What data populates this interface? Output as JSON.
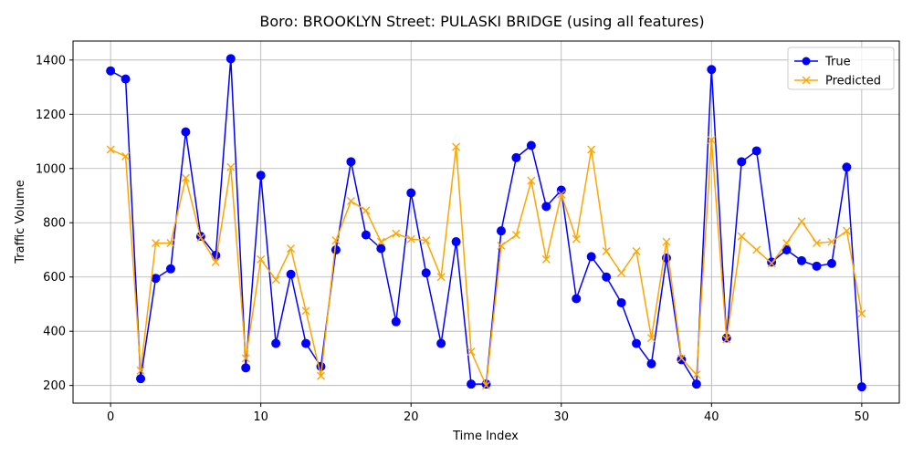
{
  "chart_data": {
    "type": "line",
    "title": "Boro: BROOKLYN Street: PULASKI BRIDGE (using all features)",
    "xlabel": "Time Index",
    "ylabel": "Traffic Volume",
    "xlim": [
      -2.5,
      52.5
    ],
    "ylim": [
      135,
      1470
    ],
    "xticks": [
      0,
      10,
      20,
      30,
      40,
      50
    ],
    "yticks": [
      200,
      400,
      600,
      800,
      1000,
      1200,
      1400
    ],
    "grid": true,
    "legend_position": "top-right",
    "x": [
      0,
      1,
      2,
      3,
      4,
      5,
      6,
      7,
      8,
      9,
      10,
      11,
      12,
      13,
      14,
      15,
      16,
      17,
      18,
      19,
      20,
      21,
      22,
      23,
      24,
      25,
      26,
      27,
      28,
      29,
      30,
      31,
      32,
      33,
      34,
      35,
      36,
      37,
      38,
      39,
      40,
      41,
      42,
      43,
      44,
      45,
      46,
      47,
      48,
      49,
      50
    ],
    "series": [
      {
        "name": "True",
        "color": "#0000ff",
        "marker": "circle",
        "values": [
          1360,
          1330,
          225,
          595,
          630,
          1135,
          750,
          680,
          1405,
          265,
          975,
          355,
          610,
          355,
          270,
          700,
          1025,
          755,
          705,
          435,
          910,
          615,
          355,
          730,
          205,
          205,
          770,
          1040,
          1085,
          860,
          920,
          520,
          675,
          600,
          505,
          355,
          280,
          670,
          295,
          205,
          1365,
          375,
          1025,
          1065,
          655,
          700,
          660,
          640,
          650,
          1005,
          195
        ]
      },
      {
        "name": "Predicted",
        "color": "#ffa500",
        "marker": "x",
        "values": [
          1070,
          1045,
          255,
          725,
          725,
          965,
          745,
          655,
          1005,
          300,
          665,
          590,
          705,
          475,
          235,
          735,
          880,
          845,
          730,
          760,
          740,
          735,
          600,
          1080,
          325,
          200,
          715,
          755,
          955,
          665,
          905,
          740,
          1070,
          695,
          615,
          695,
          375,
          730,
          300,
          240,
          1105,
          370,
          750,
          700,
          650,
          725,
          805,
          725,
          730,
          770,
          465
        ]
      }
    ]
  }
}
